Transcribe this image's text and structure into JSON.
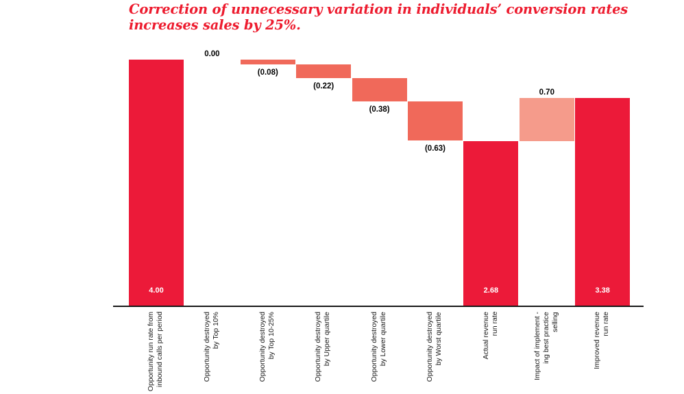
{
  "title": {
    "text": "Correction of unnecessary variation in individuals’ conversion rates\nincreases sales by 25%."
  },
  "colors": {
    "title_text": "#ED1B2E",
    "total_bar": "#EC1A39",
    "decrease_bar": "#F0695A",
    "increase_bar": "#F59B8B",
    "zero_bar": "transparent",
    "axis_line": "#161616",
    "category_text": "#1A1A1A",
    "outside_value_text": "#000000",
    "inside_value_text": "#FFFFFF"
  },
  "chart_data": {
    "type": "bar",
    "subtype": "waterfall",
    "title": "Correction of unnecessary variation in individuals’ conversion rates increases sales by 25%.",
    "xlabel": "",
    "ylabel": "",
    "ylim": [
      0,
      4.0
    ],
    "grid": false,
    "legend": false,
    "y_axis_shown": false,
    "categories": [
      "Opportunity run rate from inbound calls per period",
      "Opportunity destroyed by Top 10%",
      "Opportunity destroyed by Top 10-25%",
      "Opportunity destroyed by Upper quartile",
      "Opportunity destroyed by Lower quartile",
      "Opportunity destroyed by Worst quartile",
      "Actual revenue run rate",
      "Impact of implement - ing best practice selling",
      "Improved revenue run rate"
    ],
    "values": [
      4.0,
      0.0,
      -0.08,
      -0.22,
      -0.38,
      -0.63,
      2.68,
      0.7,
      3.38
    ],
    "bars": [
      {
        "label_lines": [
          "Opportunity run rate from",
          "inbound calls per period"
        ],
        "value": 4.0,
        "display": "4.00",
        "kind": "total",
        "value_label_pos": "inside"
      },
      {
        "label_lines": [
          "Opportunity destroyed",
          "by Top 10%"
        ],
        "value": 0.0,
        "display": "0.00",
        "kind": "zero",
        "value_label_pos": "above"
      },
      {
        "label_lines": [
          "Opportunity destroyed",
          "by Top 10-25%"
        ],
        "value": -0.08,
        "display": "(0.08)",
        "kind": "decrease",
        "value_label_pos": "below"
      },
      {
        "label_lines": [
          "Opportunity destroyed",
          "by Upper quartile"
        ],
        "value": -0.22,
        "display": "(0.22)",
        "kind": "decrease",
        "value_label_pos": "below"
      },
      {
        "label_lines": [
          "Opportunity destroyed",
          "by Lower quartile"
        ],
        "value": -0.38,
        "display": "(0.38)",
        "kind": "decrease",
        "value_label_pos": "below"
      },
      {
        "label_lines": [
          "Opportunity destroyed",
          "by Worst quartile"
        ],
        "value": -0.63,
        "display": "(0.63)",
        "kind": "decrease",
        "value_label_pos": "below"
      },
      {
        "label_lines": [
          "Actual revenue",
          "run rate"
        ],
        "value": 2.68,
        "display": "2.68",
        "kind": "total",
        "value_label_pos": "inside"
      },
      {
        "label_lines": [
          "Impact of implement -",
          "ing best practice",
          "selling"
        ],
        "value": 0.7,
        "display": "0.70",
        "kind": "increase",
        "value_label_pos": "above"
      },
      {
        "label_lines": [
          "Improved revenue",
          "run rate"
        ],
        "value": 3.38,
        "display": "3.38",
        "kind": "total",
        "value_label_pos": "inside"
      }
    ]
  }
}
